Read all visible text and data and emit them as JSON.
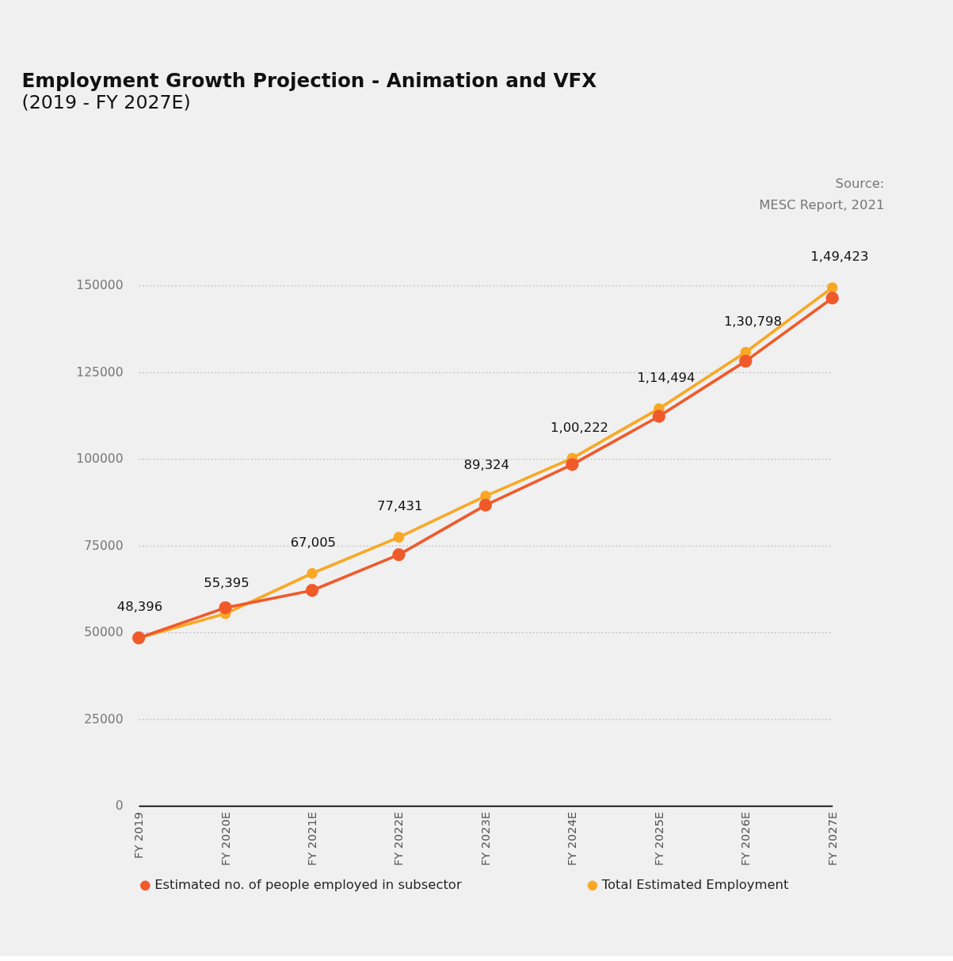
{
  "chart_data": {
    "type": "line",
    "title": "Employment Growth Projection - Animation and VFX",
    "subtitle": "(2019 - FY 2027E)",
    "annotations": [
      "Source:",
      "MESC Report, 2021"
    ],
    "categories": [
      "FY 2019",
      "FY 2020E",
      "FY 2021E",
      "FY 2022E",
      "FY 2023E",
      "FY 2024E",
      "FY 2025E",
      "FY 2026E",
      "FY 2027E"
    ],
    "series": [
      {
        "name": "Estimated no. of people employed in subsector",
        "color": "#f05a2b",
        "values": [
          48400,
          57100,
          62100,
          72400,
          86700,
          98400,
          112300,
          128200,
          146400
        ]
      },
      {
        "name": "Total Estimated Employment",
        "color": "#f9a825",
        "values": [
          48396,
          55395,
          67005,
          77431,
          89324,
          100222,
          114494,
          130798,
          149423
        ],
        "value_labels": [
          "48,396",
          "55,395",
          "67,005",
          "77,431",
          "89,324",
          "1,00,222",
          "1,14,494",
          "1,30,798",
          "1,49,423"
        ]
      }
    ],
    "ylim": [
      0,
      150000
    ],
    "yticks": [
      0,
      25000,
      50000,
      75000,
      100000,
      125000,
      150000
    ],
    "grid": "y",
    "legend": "bottom",
    "marker": "circle",
    "line_style": "solid"
  }
}
